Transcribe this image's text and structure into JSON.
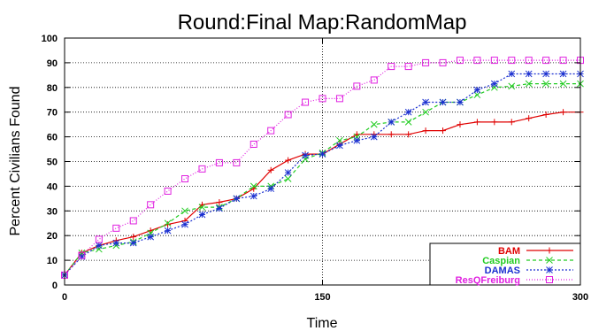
{
  "chart_data": {
    "type": "line",
    "title": "Round:Final Map:RandomMap",
    "xlabel": "Time",
    "ylabel": "Percent Civilians Found",
    "xlim": [
      0,
      300
    ],
    "ylim": [
      0,
      100
    ],
    "xticks": [
      0,
      150,
      300
    ],
    "yticks": [
      0,
      10,
      20,
      30,
      40,
      50,
      60,
      70,
      80,
      90,
      100
    ],
    "grid": "dotted",
    "legend_position": "bottom-right",
    "series": [
      {
        "name": "BAM",
        "color": "#e00000",
        "marker": "plus",
        "dash": "solid",
        "x": [
          0,
          10,
          20,
          30,
          40,
          50,
          60,
          70,
          80,
          90,
          100,
          110,
          120,
          130,
          140,
          150,
          160,
          170,
          180,
          190,
          200,
          210,
          220,
          230,
          240,
          250,
          260,
          270,
          280,
          290,
          300
        ],
        "y": [
          4,
          13,
          16,
          18,
          19.5,
          22,
          24.5,
          26,
          32.5,
          33.5,
          35,
          39,
          46.5,
          50.5,
          53,
          53,
          57,
          61,
          61,
          61,
          61,
          62.5,
          62.5,
          65,
          66,
          66,
          66,
          67.5,
          69,
          70,
          70
        ]
      },
      {
        "name": "Caspian",
        "color": "#22cc22",
        "marker": "x",
        "dash": "4,3",
        "x": [
          0,
          10,
          20,
          30,
          40,
          50,
          60,
          70,
          80,
          90,
          100,
          110,
          120,
          130,
          140,
          150,
          160,
          170,
          180,
          190,
          200,
          210,
          220,
          230,
          240,
          250,
          260,
          270,
          280,
          290,
          300
        ],
        "y": [
          4,
          13,
          14.5,
          16,
          17.5,
          21,
          25,
          30,
          31.5,
          31.5,
          35,
          40,
          40,
          43,
          51,
          53.5,
          58.5,
          60,
          65,
          66,
          66,
          70,
          74,
          74,
          77,
          80,
          80.5,
          81.5,
          81.5,
          81.5,
          81.5
        ]
      },
      {
        "name": "DAMAS",
        "color": "#1a2fd0",
        "marker": "star",
        "dash": "2,2",
        "x": [
          0,
          10,
          20,
          30,
          40,
          50,
          60,
          70,
          80,
          90,
          100,
          110,
          120,
          130,
          140,
          150,
          160,
          170,
          180,
          190,
          200,
          210,
          220,
          230,
          240,
          250,
          260,
          270,
          280,
          290,
          300
        ],
        "y": [
          4,
          11.5,
          16,
          17,
          17,
          19.5,
          22,
          24.5,
          28.5,
          31,
          35,
          36,
          39,
          45.5,
          52.5,
          53,
          56.5,
          58.5,
          60,
          66,
          70,
          74,
          74,
          74,
          79,
          81.5,
          85.5,
          85.5,
          85.5,
          85.5,
          85.5
        ]
      },
      {
        "name": "ResQFreiburg",
        "color": "#e020e0",
        "marker": "square",
        "dash": "1,2",
        "x": [
          0,
          10,
          20,
          30,
          40,
          50,
          60,
          70,
          80,
          90,
          100,
          110,
          120,
          130,
          140,
          150,
          160,
          170,
          180,
          190,
          200,
          210,
          220,
          230,
          240,
          250,
          260,
          270,
          280,
          290,
          300
        ],
        "y": [
          4,
          12,
          18.5,
          23,
          26,
          32.5,
          38,
          43,
          47,
          49.5,
          49.5,
          57,
          62.5,
          69,
          74,
          75.5,
          75.5,
          80.5,
          83,
          88.5,
          88.5,
          90,
          90,
          91,
          91,
          91,
          91,
          91,
          91,
          91,
          91
        ]
      }
    ]
  }
}
